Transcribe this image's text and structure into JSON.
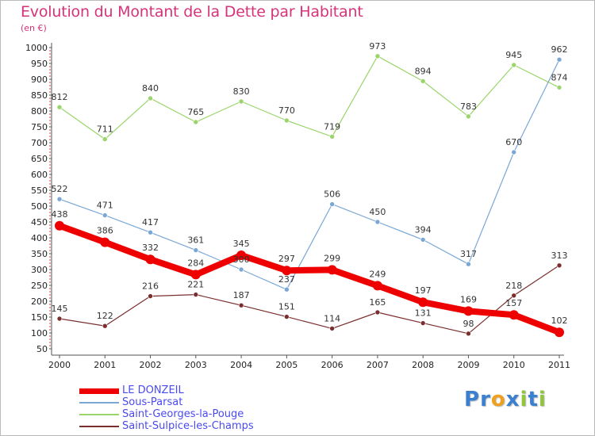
{
  "title": "Evolution du Montant de la Dette par Habitant",
  "subtitle": "(en €)",
  "logo": {
    "text": "Proxiti",
    "letters": [
      {
        "ch": "P",
        "color": "#3a7fd0"
      },
      {
        "ch": "r",
        "color": "#3a7fd0"
      },
      {
        "ch": "o",
        "color": "#f0a020"
      },
      {
        "ch": "x",
        "color": "#3a7fd0"
      },
      {
        "ch": "i",
        "color": "#8fc63c"
      },
      {
        "ch": "t",
        "color": "#3a7fd0"
      },
      {
        "ch": "i",
        "color": "#8fc63c"
      }
    ]
  },
  "chart_data": {
    "type": "line",
    "x": [
      "2000",
      "2001",
      "2002",
      "2003",
      "2004",
      "2005",
      "2006",
      "2007",
      "2008",
      "2009",
      "2010",
      "2011"
    ],
    "ylim": [
      50,
      1000
    ],
    "yticks": [
      50,
      100,
      150,
      200,
      250,
      300,
      350,
      400,
      450,
      500,
      550,
      600,
      650,
      700,
      750,
      800,
      850,
      900,
      950,
      1000
    ],
    "grid": false,
    "legend_position": "bottom-left",
    "series": [
      {
        "name": "LE DONZEIL",
        "color": "#ee0000",
        "values": [
          438,
          386,
          332,
          284,
          345,
          297,
          299,
          249,
          197,
          169,
          157,
          102
        ],
        "bold": true
      },
      {
        "name": "Sous-Parsat",
        "color": "#7aa7d6",
        "values": [
          522,
          471,
          417,
          361,
          300,
          237,
          506,
          450,
          394,
          317,
          670,
          962
        ]
      },
      {
        "name": "Saint-Georges-la-Pouge",
        "color": "#9ad46a",
        "values": [
          812,
          711,
          840,
          765,
          830,
          770,
          719,
          973,
          894,
          783,
          945,
          874
        ]
      },
      {
        "name": "Saint-Sulpice-les-Champs",
        "color": "#7a2e2e",
        "values": [
          145,
          122,
          216,
          221,
          187,
          151,
          114,
          165,
          131,
          98,
          218,
          313
        ]
      }
    ]
  }
}
